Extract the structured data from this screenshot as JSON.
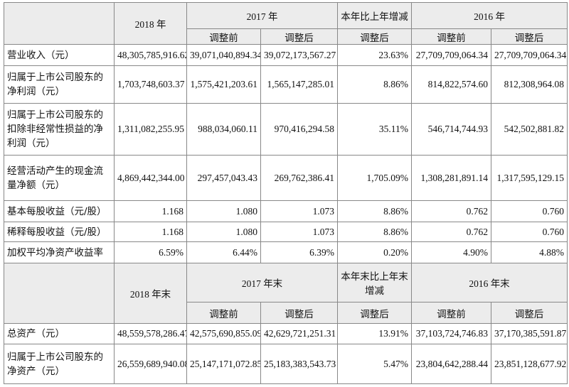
{
  "table1": {
    "header": {
      "year_a": "2018 年",
      "year_b": "2017 年",
      "change": "本年比上年增减",
      "year_c": "2016 年",
      "sub": [
        "调整前",
        "调整后",
        "调整后",
        "调整前",
        "调整后"
      ]
    },
    "rows": [
      [
        "营业收入（元）",
        "48,305,785,916.62",
        "39,071,040,894.34",
        "39,072,173,567.27",
        "23.63%",
        "27,709,709,064.34",
        "27,709,709,064.34"
      ],
      [
        "归属于上市公司股东的净利润（元）",
        "1,703,748,603.37",
        "1,575,421,203.61",
        "1,565,147,285.01",
        "8.86%",
        "814,822,574.60",
        "812,308,964.08"
      ],
      [
        "归属于上市公司股东的扣除非经常性损益的净利润（元）",
        "1,311,082,255.95",
        "988,034,060.11",
        "970,416,294.58",
        "35.11%",
        "546,714,744.93",
        "542,502,881.82"
      ],
      [
        "经营活动产生的现金流量净额（元）",
        "4,869,442,344.00",
        "297,457,043.43",
        "269,762,386.41",
        "1,705.09%",
        "1,308,281,891.14",
        "1,317,595,129.15"
      ],
      [
        "基本每股收益（元/股）",
        "1.168",
        "1.080",
        "1.073",
        "8.86%",
        "0.762",
        "0.760"
      ],
      [
        "稀释每股收益（元/股）",
        "1.168",
        "1.080",
        "1.073",
        "8.86%",
        "0.762",
        "0.760"
      ],
      [
        "加权平均净资产收益率",
        "6.59%",
        "6.44%",
        "6.39%",
        "0.20%",
        "4.90%",
        "4.88%"
      ]
    ]
  },
  "table2": {
    "header": {
      "year_a": "2018 年末",
      "year_b": "2017 年末",
      "change": "本年末比上年末增减",
      "year_c": "2016 年末",
      "sub": [
        "调整前",
        "调整后",
        "调整后",
        "调整前",
        "调整后"
      ]
    },
    "rows": [
      [
        "总资产（元）",
        "48,559,578,286.47",
        "42,575,690,855.09",
        "42,629,721,251.31",
        "13.91%",
        "37,103,724,746.83",
        "37,170,385,591.87"
      ],
      [
        "归属于上市公司股东的净资产（元）",
        "26,559,689,940.08",
        "25,147,171,072.85",
        "25,183,383,543.73",
        "5.47%",
        "23,804,642,288.44",
        "23,851,128,677.92"
      ]
    ]
  }
}
